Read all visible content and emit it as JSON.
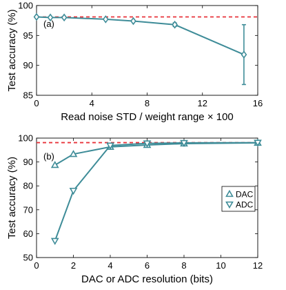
{
  "chart_data": [
    {
      "type": "line",
      "panel_label": "(a)",
      "xlabel": "Read noise STD / weight range × 100",
      "ylabel": "Test accuracy (%)",
      "xlim": [
        0,
        16
      ],
      "ylim": [
        85,
        100
      ],
      "xticks": [
        0,
        4,
        8,
        12,
        16
      ],
      "yticks": [
        85,
        90,
        95,
        100
      ],
      "grid": false,
      "baseline": {
        "y": 98.1,
        "color": "#e8323a",
        "style": "dashed"
      },
      "series": [
        {
          "marker": "diamond",
          "color": "#3e8c98",
          "x": [
            0,
            1,
            2,
            5,
            7,
            10,
            15
          ],
          "y": [
            98.1,
            98.0,
            98.0,
            97.7,
            97.4,
            96.8,
            91.8
          ],
          "error": [
            0,
            0,
            0,
            0,
            0,
            0.3,
            5.0
          ]
        }
      ]
    },
    {
      "type": "line",
      "panel_label": "(b)",
      "xlabel": "DAC or ADC resolution (bits)",
      "ylabel": "Test accuracy (%)",
      "xlim": [
        0,
        12
      ],
      "ylim": [
        50,
        100
      ],
      "xticks": [
        0,
        2,
        4,
        6,
        8,
        10,
        12
      ],
      "yticks": [
        50,
        60,
        70,
        80,
        90,
        100
      ],
      "grid": false,
      "legend_position": "center-right",
      "baseline": {
        "y": 98.1,
        "color": "#e8323a",
        "style": "dashed"
      },
      "series": [
        {
          "name": "DAC",
          "marker": "triangle-up",
          "color": "#3e8c98",
          "x": [
            1,
            2,
            4,
            6,
            8,
            12
          ],
          "y": [
            88.7,
            93.3,
            96.3,
            97.1,
            97.7,
            98.0
          ]
        },
        {
          "name": "ADC",
          "marker": "triangle-down",
          "color": "#3e8c98",
          "x": [
            1,
            2,
            4,
            6,
            8,
            12
          ],
          "y": [
            57.0,
            78.0,
            96.9,
            97.8,
            98.0,
            98.1
          ]
        }
      ]
    }
  ]
}
